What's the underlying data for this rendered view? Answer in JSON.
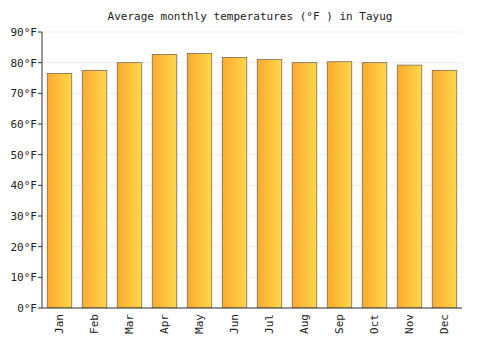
{
  "chart_data": {
    "type": "bar",
    "title": "Average monthly temperatures (°F ) in Tayug",
    "categories": [
      "Jan",
      "Feb",
      "Mar",
      "Apr",
      "May",
      "Jun",
      "Jul",
      "Aug",
      "Sep",
      "Oct",
      "Nov",
      "Dec"
    ],
    "values": [
      76.5,
      77.5,
      80,
      82.7,
      83,
      81.7,
      81,
      80,
      80.3,
      80,
      79.2,
      77.5
    ],
    "color": "#fba930",
    "ylim": [
      0,
      90
    ],
    "yticks": [
      {
        "value": 0,
        "label": "0°F"
      },
      {
        "value": 10,
        "label": "10°F"
      },
      {
        "value": 20,
        "label": "20°F"
      },
      {
        "value": 30,
        "label": "30°F"
      },
      {
        "value": 40,
        "label": "40°F"
      },
      {
        "value": 50,
        "label": "50°F"
      },
      {
        "value": 60,
        "label": "60°F"
      },
      {
        "value": 70,
        "label": "70°F"
      },
      {
        "value": 80,
        "label": "80°F"
      },
      {
        "value": 90,
        "label": "90°F"
      }
    ],
    "grid": true
  }
}
